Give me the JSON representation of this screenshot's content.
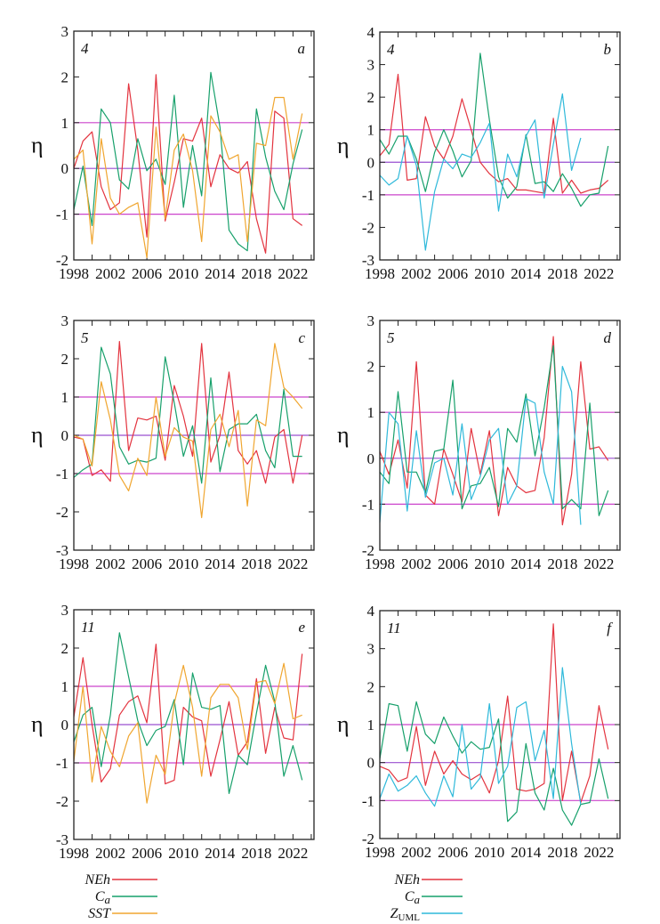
{
  "y_axis_label": "η",
  "colors": {
    "NEh": "#e3343f",
    "Ca": "#17a06b",
    "SST": "#f0a630",
    "ZUML": "#2fb9da",
    "ref": "#cc44cc"
  },
  "legend_left": [
    {
      "key": "NEh",
      "label": "NEh",
      "sub": ""
    },
    {
      "key": "Ca",
      "label": "C",
      "sub": "a"
    },
    {
      "key": "SST",
      "label": "SST",
      "sub": ""
    }
  ],
  "legend_right": [
    {
      "key": "NEh",
      "label": "NEh",
      "sub": ""
    },
    {
      "key": "Ca",
      "label": "C",
      "sub": "a"
    },
    {
      "key": "ZUML",
      "label": "Z",
      "sub": "UML"
    }
  ],
  "chart_data": [
    {
      "type": "line",
      "panel": "a",
      "month": "4",
      "ylim": [
        -2,
        3
      ],
      "yticks": [
        -2,
        -1,
        0,
        1,
        2,
        3
      ],
      "xlim": [
        1998,
        2024.3
      ],
      "xticks": [
        1998,
        2002,
        2006,
        2010,
        2014,
        2018,
        2022
      ],
      "ref_lines": [
        -1,
        0,
        1
      ],
      "ylabel": "η",
      "start_year": 1998,
      "series": [
        {
          "name": "NEh",
          "key": "NEh",
          "values": [
            0.0,
            0.6,
            0.8,
            -0.4,
            -0.9,
            -0.75,
            1.85,
            0.4,
            -1.5,
            2.05,
            -1.15,
            -0.3,
            0.65,
            0.6,
            1.1,
            -0.4,
            0.3,
            0.0,
            -0.1,
            0.15,
            -1.1,
            -1.85,
            1.25,
            1.1,
            -1.1,
            -1.25
          ]
        },
        {
          "name": "Ca",
          "key": "Ca",
          "values": [
            -0.9,
            0.05,
            -1.25,
            1.3,
            1.0,
            -0.25,
            -0.45,
            0.65,
            -0.05,
            0.2,
            -0.35,
            1.6,
            -0.85,
            0.5,
            -0.6,
            2.1,
            0.9,
            -1.35,
            -1.65,
            -1.8,
            1.3,
            0.25,
            -0.5,
            -0.9,
            0.1,
            0.85
          ]
        },
        {
          "name": "SST",
          "key": "SST",
          "values": [
            0.2,
            0.4,
            -1.65,
            0.65,
            -0.65,
            -1.0,
            -0.85,
            -0.75,
            -1.95,
            0.9,
            -1.1,
            0.4,
            0.75,
            -0.05,
            -1.6,
            1.15,
            0.8,
            0.2,
            0.3,
            -1.6,
            0.55,
            0.5,
            1.55,
            1.55,
            0.2,
            1.2
          ]
        }
      ]
    },
    {
      "type": "line",
      "panel": "b",
      "month": "4",
      "ylim": [
        -3,
        4
      ],
      "yticks": [
        -3,
        -2,
        -1,
        0,
        1,
        2,
        3,
        4
      ],
      "xlim": [
        1998,
        2024.3
      ],
      "xticks": [
        1998,
        2002,
        2006,
        2010,
        2014,
        2018,
        2022
      ],
      "ref_lines": [
        -1,
        0,
        1
      ],
      "ylabel": "η",
      "start_year": 1998,
      "series": [
        {
          "name": "NEh",
          "key": "NEh",
          "values": [
            0.2,
            0.55,
            2.7,
            -0.55,
            -0.5,
            1.4,
            0.5,
            0.1,
            0.8,
            1.95,
            1.0,
            0.0,
            -0.35,
            -0.6,
            -0.5,
            -0.85,
            -0.85,
            -0.9,
            -0.95,
            1.35,
            -0.95,
            -0.55,
            -0.95,
            -0.85,
            -0.8,
            -0.55
          ]
        },
        {
          "name": "Ca",
          "key": "Ca",
          "values": [
            0.7,
            0.25,
            0.8,
            0.8,
            0.1,
            -0.9,
            0.3,
            1.0,
            0.35,
            -0.45,
            0.05,
            3.35,
            1.3,
            -0.45,
            -1.1,
            -0.75,
            0.85,
            -0.65,
            -0.6,
            -0.9,
            -0.35,
            -0.8,
            -1.35,
            -1.0,
            -0.95,
            0.5
          ]
        },
        {
          "name": "ZUML",
          "key": "ZUML",
          "values": [
            -0.4,
            -0.7,
            -0.5,
            0.8,
            -0.1,
            -2.7,
            -0.9,
            0.1,
            -0.2,
            0.25,
            0.15,
            0.6,
            1.2,
            -1.5,
            0.25,
            -0.45,
            0.8,
            1.3,
            -1.1,
            0.55,
            2.1,
            -0.25,
            0.75,
            null,
            null,
            null
          ]
        }
      ]
    },
    {
      "type": "line",
      "panel": "c",
      "month": "5",
      "ylim": [
        -3,
        3
      ],
      "yticks": [
        -3,
        -2,
        -1,
        0,
        1,
        2,
        3
      ],
      "xlim": [
        1998,
        2024.3
      ],
      "xticks": [
        1998,
        2002,
        2006,
        2010,
        2014,
        2018,
        2022
      ],
      "ref_lines": [
        -1,
        0,
        1
      ],
      "ylabel": "η",
      "start_year": 1998,
      "series": [
        {
          "name": "NEh",
          "key": "NEh",
          "values": [
            -0.05,
            -0.1,
            -1.05,
            -0.9,
            -1.2,
            2.45,
            -0.4,
            0.45,
            0.4,
            0.5,
            -0.65,
            1.3,
            0.5,
            -0.55,
            2.4,
            -0.7,
            0.0,
            1.65,
            -0.4,
            -0.75,
            -0.4,
            -1.25,
            -0.05,
            0.15,
            -1.25,
            0.0
          ]
        },
        {
          "name": "Ca",
          "key": "Ca",
          "values": [
            -1.1,
            -0.9,
            -0.75,
            2.3,
            1.6,
            -0.3,
            -0.75,
            -0.65,
            -0.7,
            -0.6,
            2.05,
            0.85,
            -0.55,
            0.25,
            -1.25,
            1.5,
            -0.95,
            0.15,
            0.3,
            0.3,
            0.55,
            -0.4,
            -0.85,
            1.2,
            -0.55,
            -0.55
          ]
        },
        {
          "name": "SST",
          "key": "SST",
          "values": [
            0.0,
            -0.1,
            -0.8,
            1.4,
            0.4,
            -1.05,
            -1.45,
            -0.6,
            -1.05,
            1.0,
            -0.55,
            0.2,
            -0.05,
            -0.15,
            -2.15,
            0.15,
            0.55,
            -0.3,
            0.65,
            -1.85,
            0.4,
            0.25,
            2.4,
            1.25,
            1.0,
            0.7
          ]
        }
      ]
    },
    {
      "type": "line",
      "panel": "d",
      "month": "5",
      "ylim": [
        -2,
        3
      ],
      "yticks": [
        -2,
        -1,
        0,
        1,
        2,
        3
      ],
      "xlim": [
        1998,
        2024.3
      ],
      "xticks": [
        1998,
        2002,
        2006,
        2010,
        2014,
        2018,
        2022
      ],
      "ref_lines": [
        -1,
        0,
        1
      ],
      "ylabel": "η",
      "start_year": 1998,
      "series": [
        {
          "name": "NEh",
          "key": "NEh",
          "values": [
            0.15,
            -0.35,
            0.4,
            -0.65,
            2.1,
            -0.8,
            -1.0,
            0.2,
            -0.35,
            -0.95,
            0.65,
            -0.35,
            0.6,
            -1.25,
            -0.2,
            -0.6,
            -0.75,
            -0.7,
            0.45,
            2.65,
            -1.45,
            -0.35,
            2.1,
            0.2,
            0.25,
            -0.05
          ]
        },
        {
          "name": "Ca",
          "key": "Ca",
          "values": [
            -0.3,
            -0.55,
            1.45,
            -0.3,
            -0.3,
            -0.75,
            0.15,
            0.2,
            1.7,
            -1.1,
            -0.6,
            -0.55,
            -0.2,
            -1.05,
            0.65,
            0.35,
            1.4,
            0.05,
            1.1,
            2.45,
            -1.1,
            -0.9,
            -1.1,
            1.2,
            -1.25,
            -0.7
          ]
        },
        {
          "name": "ZUML",
          "key": "ZUML",
          "values": [
            -1.4,
            1.0,
            0.75,
            -1.15,
            0.6,
            -0.85,
            -0.1,
            0.0,
            -0.8,
            0.75,
            -0.9,
            -0.4,
            0.4,
            0.65,
            -1.0,
            -0.6,
            1.3,
            1.2,
            -0.3,
            -1.0,
            2.0,
            1.45,
            -1.45,
            null,
            null,
            null
          ]
        }
      ]
    },
    {
      "type": "line",
      "panel": "e",
      "month": "11",
      "ylim": [
        -3,
        3
      ],
      "yticks": [
        -3,
        -2,
        -1,
        0,
        1,
        2,
        3
      ],
      "xlim": [
        1998,
        2024.3
      ],
      "xticks": [
        1998,
        2002,
        2006,
        2010,
        2014,
        2018,
        2022
      ],
      "ref_lines": [
        -1,
        0,
        1
      ],
      "ylabel": "η",
      "start_year": 1998,
      "series": [
        {
          "name": "NEh",
          "key": "NEh",
          "values": [
            0.2,
            1.75,
            0.0,
            -1.5,
            -1.15,
            0.25,
            0.6,
            0.75,
            0.05,
            2.1,
            -1.55,
            -1.45,
            0.45,
            0.2,
            0.1,
            -1.35,
            -0.4,
            0.6,
            -0.8,
            -0.45,
            1.2,
            -0.75,
            0.45,
            -0.35,
            -0.4,
            1.85
          ]
        },
        {
          "name": "Ca",
          "key": "Ca",
          "values": [
            -0.45,
            0.25,
            0.45,
            -1.1,
            0.25,
            2.4,
            1.25,
            0.1,
            -0.55,
            -0.15,
            -0.05,
            0.65,
            -1.05,
            1.35,
            0.45,
            0.4,
            0.5,
            -1.8,
            -0.8,
            -1.05,
            0.3,
            1.55,
            0.6,
            -1.35,
            -0.55,
            -1.45
          ]
        },
        {
          "name": "SST",
          "key": "SST",
          "values": [
            -0.95,
            1.0,
            -1.5,
            -0.05,
            -0.7,
            -1.1,
            -0.3,
            0.05,
            -2.05,
            -0.8,
            -1.3,
            0.55,
            1.55,
            0.45,
            -1.35,
            0.7,
            1.05,
            1.05,
            0.7,
            -0.65,
            1.1,
            1.15,
            0.55,
            1.6,
            0.15,
            0.25
          ]
        }
      ]
    },
    {
      "type": "line",
      "panel": "f",
      "month": "11",
      "ylim": [
        -2,
        4
      ],
      "yticks": [
        -2,
        -1,
        0,
        1,
        2,
        3,
        4
      ],
      "xlim": [
        1998,
        2024.3
      ],
      "xticks": [
        1998,
        2002,
        2006,
        2010,
        2014,
        2018,
        2022
      ],
      "ref_lines": [
        -1,
        0,
        1
      ],
      "ylabel": "η",
      "start_year": 1998,
      "series": [
        {
          "name": "NEh",
          "key": "NEh",
          "values": [
            -0.1,
            -0.2,
            -0.5,
            -0.4,
            0.95,
            -0.6,
            0.3,
            -0.3,
            0.05,
            -0.3,
            -0.45,
            -0.3,
            -0.8,
            0.05,
            1.75,
            -0.7,
            -0.75,
            -0.7,
            -0.55,
            3.65,
            -1.0,
            0.3,
            -1.05,
            -0.35,
            1.5,
            0.35
          ]
        },
        {
          "name": "Ca",
          "key": "Ca",
          "values": [
            0.1,
            1.55,
            1.5,
            0.3,
            1.6,
            0.75,
            0.5,
            1.2,
            0.7,
            0.25,
            0.55,
            0.35,
            0.4,
            1.15,
            -1.55,
            -1.3,
            0.5,
            -0.8,
            -1.25,
            -0.15,
            -1.25,
            -1.65,
            -1.1,
            -1.05,
            0.1,
            -0.95
          ]
        },
        {
          "name": "ZUML",
          "key": "ZUML",
          "values": [
            -0.95,
            -0.3,
            -0.75,
            -0.6,
            -0.35,
            -0.8,
            -1.15,
            -0.35,
            -0.9,
            1.0,
            -0.7,
            -0.4,
            1.55,
            -0.55,
            -0.1,
            1.45,
            1.6,
            0.05,
            0.85,
            -0.95,
            2.5,
            0.5,
            -1.1,
            null,
            null,
            null
          ]
        }
      ]
    }
  ]
}
